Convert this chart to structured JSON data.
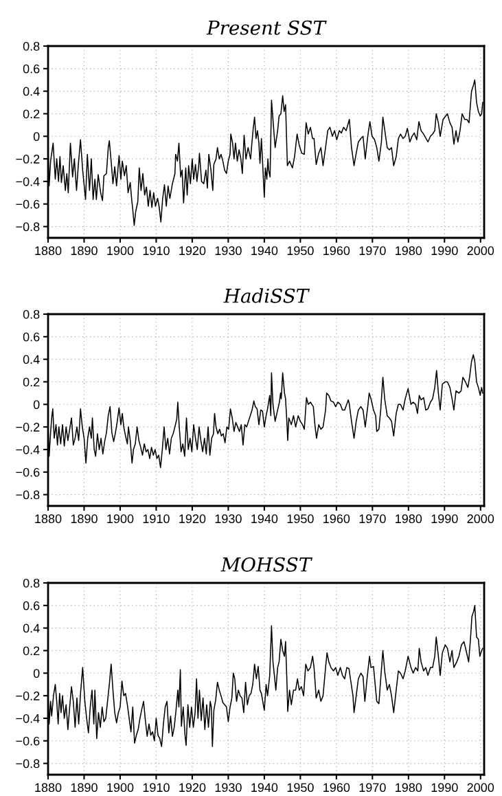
{
  "chart_data": [
    {
      "type": "line",
      "title": "Present SST",
      "xlim": [
        1880,
        2001
      ],
      "xticks": [
        1880,
        1890,
        1900,
        1910,
        1920,
        1930,
        1940,
        1950,
        1960,
        1970,
        1980,
        1990,
        2000
      ],
      "ylim": [
        -0.9,
        0.8
      ],
      "yticks": [
        0.8,
        0.6,
        0.4,
        0.2,
        0,
        {
          "value": -0.2,
          "label": "−0.2"
        },
        {
          "value": -0.4,
          "label": "−0.4"
        },
        {
          "value": -0.6,
          "label": "−0.6"
        },
        {
          "value": -0.8,
          "label": "−0.8"
        }
      ],
      "grid": true,
      "line_style": "solid",
      "x": [
        1880.0,
        1880.3,
        1880.7,
        1881.4,
        1882.0,
        1882.4,
        1882.9,
        1883.3,
        1883.7,
        1884.2,
        1884.8,
        1885.2,
        1885.6,
        1886.2,
        1886.8,
        1887.3,
        1887.9,
        1888.4,
        1889.0,
        1889.6,
        1890.4,
        1890.9,
        1891.5,
        1892.0,
        1892.5,
        1893.0,
        1893.4,
        1893.9,
        1894.6,
        1895.1,
        1895.5,
        1896.2,
        1896.7,
        1897.0,
        1897.5,
        1898.0,
        1898.5,
        1899.0,
        1899.7,
        1900.2,
        1900.6,
        1901.2,
        1901.7,
        1902.2,
        1902.8,
        1903.2,
        1903.5,
        1903.9,
        1904.3,
        1904.9,
        1905.3,
        1905.8,
        1906.3,
        1906.8,
        1907.3,
        1907.8,
        1908.3,
        1908.8,
        1909.3,
        1909.8,
        1910.4,
        1910.8,
        1911.3,
        1911.8,
        1912.3,
        1912.8,
        1913.3,
        1913.8,
        1914.5,
        1915.2,
        1915.4,
        1915.9,
        1916.3,
        1916.8,
        1917.2,
        1917.6,
        1918.2,
        1918.6,
        1919.0,
        1919.5,
        1920.0,
        1920.4,
        1920.9,
        1921.3,
        1921.8,
        1922.0,
        1922.6,
        1923.2,
        1923.8,
        1924.2,
        1924.6,
        1925.2,
        1925.7,
        1926.0,
        1926.6,
        1927.0,
        1927.5,
        1928.0,
        1928.5,
        1929.0,
        1929.5,
        1930.0,
        1930.5,
        1930.7,
        1931.2,
        1931.6,
        1932.0,
        1932.5,
        1933.0,
        1933.5,
        1933.9,
        1934.4,
        1934.9,
        1935.5,
        1936.2,
        1936.5,
        1936.9,
        1937.3,
        1937.7,
        1938.1,
        1938.5,
        1938.8,
        1939.2,
        1940.0,
        1940.3,
        1940.7,
        1941.0,
        1941.2,
        1941.6,
        1942.0,
        1942.4,
        1943.0,
        1943.7,
        1944.1,
        1944.6,
        1945.1,
        1945.5,
        1945.9,
        1946.4,
        1947.0,
        1947.8,
        1948.4,
        1949.1,
        1949.7,
        1950.4,
        1951.1,
        1951.6,
        1952.2,
        1952.8,
        1953.4,
        1953.8,
        1954.4,
        1955.1,
        1955.7,
        1956.3,
        1957.0,
        1957.6,
        1958.2,
        1958.9,
        1959.5,
        1960.1,
        1960.8,
        1961.4,
        1962.0,
        1962.7,
        1963.6,
        1964.2,
        1964.9,
        1965.5,
        1966.1,
        1966.8,
        1967.4,
        1968.0,
        1968.7,
        1969.3,
        1969.9,
        1970.6,
        1971.2,
        1971.8,
        1972.5,
        1972.9,
        1973.4,
        1974.1,
        1974.7,
        1975.3,
        1975.9,
        1976.6,
        1977.2,
        1977.8,
        1978.5,
        1979.1,
        1979.7,
        1980.4,
        1981.0,
        1981.6,
        1982.3,
        1982.9,
        1983.5,
        1984.2,
        1985.4,
        1986.1,
        1986.7,
        1987.3,
        1987.7,
        1988.3,
        1988.8,
        1989.6,
        1990.8,
        1991.5,
        1992.1,
        1992.6,
        1993.2,
        1993.7,
        1994.3,
        1994.9,
        1995.6,
        1996.2,
        1996.8,
        1997.2,
        1997.5,
        1998.0,
        1998.4,
        1998.9,
        1999.4,
        1999.9,
        2000.3,
        2000.6
      ],
      "series": [
        {
          "color": "#000000",
          "values": [
            -0.1,
            -0.44,
            -0.22,
            -0.06,
            -0.38,
            -0.2,
            -0.4,
            -0.18,
            -0.41,
            -0.26,
            -0.48,
            -0.33,
            -0.5,
            -0.06,
            -0.36,
            -0.2,
            -0.48,
            -0.25,
            -0.03,
            -0.3,
            -0.56,
            -0.16,
            -0.48,
            -0.2,
            -0.56,
            -0.38,
            -0.56,
            -0.34,
            -0.5,
            -0.57,
            -0.35,
            -0.33,
            -0.1,
            -0.04,
            -0.22,
            -0.42,
            -0.27,
            -0.44,
            -0.17,
            -0.38,
            -0.22,
            -0.35,
            -0.26,
            -0.5,
            -0.41,
            -0.56,
            -0.65,
            -0.79,
            -0.67,
            -0.58,
            -0.28,
            -0.48,
            -0.33,
            -0.52,
            -0.45,
            -0.62,
            -0.48,
            -0.63,
            -0.5,
            -0.62,
            -0.55,
            -0.62,
            -0.76,
            -0.55,
            -0.43,
            -0.62,
            -0.44,
            -0.55,
            -0.42,
            -0.33,
            -0.16,
            -0.22,
            -0.06,
            -0.36,
            -0.3,
            -0.59,
            -0.28,
            -0.52,
            -0.26,
            -0.42,
            -0.2,
            -0.38,
            -0.25,
            -0.4,
            -0.26,
            -0.15,
            -0.4,
            -0.42,
            -0.3,
            -0.46,
            -0.16,
            -0.3,
            -0.48,
            -0.25,
            -0.2,
            -0.1,
            -0.2,
            -0.16,
            -0.22,
            -0.3,
            -0.33,
            -0.22,
            -0.16,
            0.02,
            -0.06,
            -0.2,
            -0.06,
            -0.22,
            -0.12,
            -0.2,
            -0.33,
            0.01,
            -0.2,
            -0.1,
            -0.2,
            -0.08,
            0.06,
            0.17,
            -0.02,
            0.05,
            -0.06,
            -0.24,
            -0.02,
            -0.54,
            -0.28,
            -0.38,
            -0.2,
            -0.3,
            -0.36,
            0.32,
            0.15,
            -0.1,
            0.05,
            0.18,
            0.2,
            0.36,
            0.22,
            0.28,
            -0.26,
            -0.22,
            -0.28,
            -0.18,
            0.02,
            -0.08,
            -0.15,
            -0.16,
            0.12,
            0.02,
            0.08,
            -0.02,
            -0.02,
            -0.25,
            -0.15,
            -0.1,
            -0.26,
            -0.1,
            0.05,
            0.08,
            0.0,
            0.05,
            -0.03,
            0.05,
            0.03,
            0.08,
            0.05,
            0.15,
            -0.1,
            -0.26,
            -0.15,
            -0.05,
            -0.02,
            0.0,
            -0.2,
            0.0,
            0.13,
            0.0,
            -0.03,
            -0.1,
            -0.22,
            -0.05,
            0.17,
            0.06,
            -0.1,
            -0.12,
            -0.1,
            -0.26,
            -0.18,
            -0.02,
            0.02,
            -0.02,
            0.0,
            0.07,
            -0.05,
            0.0,
            0.03,
            -0.03,
            0.13,
            0.05,
            0.02,
            -0.05,
            0.0,
            0.02,
            0.05,
            0.2,
            0.12,
            0.0,
            0.15,
            0.2,
            0.12,
            0.08,
            -0.07,
            0.05,
            -0.05,
            0.05,
            0.2,
            0.15,
            0.15,
            0.12,
            0.28,
            0.4,
            0.45,
            0.5,
            0.3,
            0.22,
            0.18,
            0.2,
            0.3
          ]
        }
      ]
    },
    {
      "type": "line",
      "title": "HadiSST",
      "xlim": [
        1880,
        2001
      ],
      "xticks": [
        1880,
        1890,
        1900,
        1910,
        1920,
        1930,
        1940,
        1950,
        1960,
        1970,
        1980,
        1990,
        2000
      ],
      "ylim": [
        -0.9,
        0.8
      ],
      "yticks": [
        0.8,
        0.6,
        0.4,
        0.2,
        0,
        {
          "value": -0.2,
          "label": "−0.2"
        },
        {
          "value": -0.4,
          "label": "−0.4"
        },
        {
          "value": -0.6,
          "label": "−0.6"
        },
        {
          "value": -0.8,
          "label": "−0.8"
        }
      ],
      "grid": true,
      "line_style": "solid",
      "x": [
        1880.0,
        1880.3,
        1880.7,
        1881.0,
        1881.3,
        1881.7,
        1882.2,
        1882.6,
        1883.0,
        1883.5,
        1884.0,
        1884.5,
        1885.0,
        1885.5,
        1886.0,
        1886.5,
        1887.0,
        1887.5,
        1888.0,
        1888.5,
        1889.0,
        1889.5,
        1890.0,
        1890.5,
        1891.0,
        1891.5,
        1892.0,
        1892.3,
        1892.8,
        1893.2,
        1893.7,
        1894.2,
        1894.7,
        1895.2,
        1895.7,
        1896.2,
        1896.7,
        1897.2,
        1897.7,
        1898.2,
        1898.7,
        1899.2,
        1899.7,
        1900.2,
        1900.6,
        1901.0,
        1901.5,
        1902.0,
        1902.3,
        1902.8,
        1903.3,
        1903.7,
        1904.2,
        1904.7,
        1905.2,
        1905.7,
        1906.2,
        1906.7,
        1907.2,
        1907.7,
        1908.2,
        1908.7,
        1909.2,
        1909.7,
        1910.2,
        1910.7,
        1911.2,
        1911.7,
        1912.2,
        1912.7,
        1913.2,
        1913.7,
        1914.2,
        1914.7,
        1915.2,
        1915.7,
        1916.0,
        1916.4,
        1916.9,
        1917.4,
        1917.9,
        1918.4,
        1918.9,
        1919.4,
        1919.9,
        1920.4,
        1920.9,
        1921.4,
        1921.9,
        1922.4,
        1922.9,
        1923.4,
        1923.9,
        1924.4,
        1924.9,
        1925.4,
        1925.9,
        1926.2,
        1926.6,
        1927.1,
        1927.6,
        1928.1,
        1928.6,
        1929.1,
        1929.6,
        1930.1,
        1930.6,
        1931.1,
        1931.6,
        1932.1,
        1932.6,
        1933.1,
        1933.6,
        1934.1,
        1934.6,
        1935.1,
        1935.6,
        1936.1,
        1936.6,
        1937.1,
        1937.5,
        1938.0,
        1938.5,
        1939.0,
        1939.5,
        1940.0,
        1940.5,
        1940.9,
        1941.5,
        1941.8,
        1942.0,
        1942.4,
        1943.0,
        1943.7,
        1944.2,
        1944.5,
        1944.7,
        1945.1,
        1945.6,
        1945.9,
        1946.2,
        1946.5,
        1946.8,
        1947.5,
        1948.1,
        1948.7,
        1949.4,
        1950.0,
        1950.6,
        1951.1,
        1951.7,
        1952.2,
        1952.8,
        1953.6,
        1954.1,
        1954.5,
        1955.1,
        1955.7,
        1956.3,
        1957.0,
        1957.3,
        1957.9,
        1958.5,
        1959.2,
        1959.8,
        1960.4,
        1961.1,
        1961.7,
        1962.3,
        1963.3,
        1963.6,
        1964.2,
        1964.9,
        1965.5,
        1966.1,
        1966.8,
        1967.4,
        1968.0,
        1968.7,
        1969.1,
        1969.6,
        1970.3,
        1970.9,
        1971.2,
        1971.8,
        1972.3,
        1972.9,
        1973.4,
        1974.1,
        1974.7,
        1975.3,
        1975.9,
        1976.6,
        1977.2,
        1977.8,
        1978.5,
        1979.1,
        1979.9,
        1980.7,
        1981.3,
        1982.0,
        1982.5,
        1983.0,
        1983.5,
        1984.2,
        1984.8,
        1985.4,
        1986.1,
        1986.7,
        1987.3,
        1987.8,
        1988.3,
        1988.8,
        1989.4,
        1990.2,
        1990.8,
        1991.5,
        1992.1,
        1992.6,
        1993.2,
        1994.0,
        1994.6,
        1995.1,
        1995.8,
        1996.5,
        1997.0,
        1997.5,
        1998.0,
        1998.4,
        1998.9,
        1999.4,
        1999.9,
        2000.3,
        2000.6
      ],
      "series": [
        {
          "color": "#000000",
          "values": [
            -0.2,
            -0.46,
            -0.25,
            -0.12,
            -0.04,
            -0.3,
            -0.18,
            -0.36,
            -0.2,
            -0.35,
            -0.18,
            -0.37,
            -0.2,
            -0.32,
            -0.22,
            -0.12,
            -0.36,
            -0.3,
            -0.2,
            -0.32,
            -0.04,
            -0.2,
            -0.3,
            -0.52,
            -0.3,
            -0.2,
            -0.3,
            -0.12,
            -0.4,
            -0.46,
            -0.26,
            -0.4,
            -0.3,
            -0.44,
            -0.33,
            -0.25,
            -0.1,
            -0.02,
            -0.25,
            -0.33,
            -0.25,
            -0.15,
            -0.03,
            -0.18,
            -0.08,
            -0.2,
            -0.28,
            -0.35,
            -0.2,
            -0.32,
            -0.52,
            -0.4,
            -0.35,
            -0.2,
            -0.32,
            -0.38,
            -0.45,
            -0.35,
            -0.42,
            -0.4,
            -0.48,
            -0.38,
            -0.45,
            -0.4,
            -0.48,
            -0.45,
            -0.56,
            -0.4,
            -0.2,
            -0.4,
            -0.3,
            -0.44,
            -0.3,
            -0.26,
            -0.2,
            -0.13,
            0.02,
            -0.2,
            -0.42,
            -0.35,
            -0.46,
            -0.12,
            -0.4,
            -0.3,
            -0.42,
            -0.18,
            -0.3,
            -0.4,
            -0.2,
            -0.32,
            -0.42,
            -0.3,
            -0.44,
            -0.2,
            -0.45,
            -0.3,
            -0.26,
            -0.08,
            -0.2,
            -0.26,
            -0.22,
            -0.28,
            -0.26,
            -0.34,
            -0.2,
            -0.22,
            -0.04,
            -0.12,
            -0.24,
            -0.16,
            -0.2,
            -0.24,
            -0.18,
            -0.36,
            -0.18,
            -0.2,
            -0.15,
            -0.1,
            -0.05,
            0.03,
            -0.02,
            -0.04,
            -0.18,
            -0.05,
            -0.06,
            -0.2,
            -0.1,
            -0.04,
            0.08,
            -0.1,
            0.28,
            0.0,
            -0.15,
            -0.05,
            0.02,
            0.1,
            0.05,
            0.28,
            0.1,
            0.05,
            -0.12,
            -0.32,
            -0.12,
            -0.18,
            -0.1,
            -0.2,
            -0.1,
            -0.15,
            -0.18,
            -0.22,
            0.06,
            0.0,
            0.02,
            -0.02,
            -0.2,
            -0.3,
            -0.18,
            -0.22,
            -0.2,
            -0.05,
            0.1,
            0.08,
            0.03,
            0.02,
            -0.02,
            0.02,
            0.0,
            -0.05,
            -0.05,
            0.04,
            0.0,
            -0.15,
            -0.3,
            -0.15,
            -0.05,
            -0.02,
            -0.05,
            -0.2,
            -0.02,
            0.1,
            0.05,
            -0.05,
            -0.1,
            -0.24,
            -0.22,
            -0.05,
            0.24,
            0.05,
            -0.1,
            -0.12,
            -0.15,
            -0.28,
            -0.08,
            0.0,
            0.0,
            -0.05,
            0.05,
            0.14,
            0.0,
            0.02,
            0.0,
            -0.08,
            0.08,
            0.04,
            0.06,
            -0.05,
            -0.04,
            0.02,
            0.05,
            0.15,
            0.3,
            0.1,
            -0.05,
            0.18,
            0.2,
            0.2,
            0.15,
            0.05,
            -0.05,
            0.12,
            0.1,
            0.12,
            0.24,
            0.2,
            0.15,
            0.25,
            0.38,
            0.44,
            0.38,
            0.2,
            0.15,
            0.08,
            0.15,
            0.1
          ]
        }
      ]
    },
    {
      "type": "line",
      "title": "MOHSST",
      "xlim": [
        1880,
        2001
      ],
      "xticks": [
        1880,
        1890,
        1900,
        1910,
        1920,
        1930,
        1940,
        1950,
        1960,
        1970,
        1980,
        1990,
        2000
      ],
      "ylim": [
        -0.9,
        0.8
      ],
      "yticks": [
        0.8,
        0.6,
        0.4,
        0.2,
        0,
        {
          "value": -0.2,
          "label": "−0.2"
        },
        {
          "value": -0.4,
          "label": "−0.4"
        },
        {
          "value": -0.6,
          "label": "−0.6"
        },
        {
          "value": -0.8,
          "label": "−0.8"
        }
      ],
      "grid": true,
      "line_style": "solid",
      "x": [
        1880.0,
        1880.3,
        1880.7,
        1881.0,
        1881.5,
        1882.0,
        1882.4,
        1882.8,
        1883.2,
        1883.6,
        1884.0,
        1884.5,
        1885.0,
        1885.5,
        1886.0,
        1886.5,
        1887.0,
        1887.5,
        1888.0,
        1888.5,
        1889.0,
        1889.6,
        1890.2,
        1890.7,
        1891.2,
        1891.7,
        1892.2,
        1892.7,
        1893.0,
        1893.5,
        1894.0,
        1894.5,
        1895.0,
        1895.5,
        1896.0,
        1896.5,
        1897.0,
        1897.5,
        1898.0,
        1898.5,
        1899.0,
        1899.5,
        1900.0,
        1900.5,
        1901.0,
        1901.5,
        1902.0,
        1902.5,
        1903.0,
        1903.5,
        1904.0,
        1904.5,
        1905.0,
        1905.5,
        1906.0,
        1906.5,
        1907.0,
        1907.5,
        1908.0,
        1908.5,
        1909.0,
        1909.5,
        1910.0,
        1910.5,
        1911.0,
        1911.5,
        1912.0,
        1912.5,
        1913.0,
        1913.5,
        1914.0,
        1914.5,
        1915.0,
        1915.5,
        1916.0,
        1916.3,
        1916.7,
        1917.0,
        1917.5,
        1918.0,
        1918.3,
        1918.8,
        1919.3,
        1919.8,
        1920.3,
        1920.8,
        1921.2,
        1921.6,
        1922.0,
        1922.5,
        1923.0,
        1923.5,
        1924.0,
        1924.5,
        1925.0,
        1925.3,
        1925.6,
        1926.0,
        1926.5,
        1927.0,
        1927.5,
        1928.0,
        1928.5,
        1929.0,
        1929.5,
        1930.0,
        1930.5,
        1931.0,
        1931.4,
        1931.8,
        1932.3,
        1932.8,
        1933.3,
        1933.8,
        1934.3,
        1934.8,
        1935.3,
        1935.8,
        1936.3,
        1936.8,
        1937.3,
        1937.8,
        1938.3,
        1938.8,
        1939.2,
        1940.0,
        1940.5,
        1940.9,
        1941.5,
        1942.0,
        1942.4,
        1942.8,
        1943.2,
        1943.7,
        1944.1,
        1944.6,
        1945.1,
        1945.6,
        1945.9,
        1946.3,
        1946.5,
        1947.0,
        1947.5,
        1948.1,
        1948.7,
        1949.2,
        1949.7,
        1950.3,
        1950.9,
        1951.5,
        1952.1,
        1952.8,
        1953.4,
        1953.8,
        1954.4,
        1955.1,
        1955.7,
        1956.3,
        1957.0,
        1957.4,
        1957.9,
        1958.5,
        1959.2,
        1959.8,
        1960.4,
        1961.1,
        1961.7,
        1962.3,
        1962.9,
        1963.5,
        1963.9,
        1964.6,
        1964.9,
        1965.5,
        1966.1,
        1966.8,
        1967.4,
        1967.9,
        1968.5,
        1969.2,
        1969.6,
        1970.3,
        1970.9,
        1971.2,
        1971.8,
        1972.3,
        1972.9,
        1973.4,
        1974.1,
        1974.7,
        1975.3,
        1975.9,
        1976.6,
        1977.2,
        1977.8,
        1978.5,
        1979.1,
        1979.9,
        1980.7,
        1981.3,
        1982.0,
        1982.6,
        1983.0,
        1983.5,
        1984.2,
        1984.8,
        1985.4,
        1986.1,
        1986.7,
        1987.3,
        1987.7,
        1988.3,
        1988.8,
        1989.4,
        1990.2,
        1990.8,
        1991.5,
        1992.1,
        1992.6,
        1993.4,
        1994.0,
        1994.7,
        1995.4,
        1996.0,
        1996.7,
        1997.2,
        1997.6,
        1998.1,
        1998.4,
        1998.9,
        1999.4,
        1999.8,
        2000.3,
        2000.6
      ],
      "series": [
        {
          "color": "#000000",
          "values": [
            -0.2,
            -0.45,
            -0.25,
            -0.38,
            -0.2,
            -0.1,
            -0.25,
            -0.45,
            -0.18,
            -0.35,
            -0.2,
            -0.4,
            -0.28,
            -0.5,
            -0.3,
            -0.12,
            -0.25,
            -0.48,
            -0.22,
            -0.45,
            -0.18,
            0.05,
            -0.25,
            -0.4,
            -0.53,
            -0.3,
            -0.15,
            -0.45,
            -0.15,
            -0.58,
            -0.35,
            -0.48,
            -0.3,
            -0.43,
            -0.4,
            -0.25,
            -0.1,
            0.08,
            -0.15,
            -0.35,
            -0.44,
            -0.35,
            -0.3,
            -0.07,
            -0.2,
            -0.18,
            -0.28,
            -0.4,
            -0.52,
            -0.3,
            -0.62,
            -0.55,
            -0.5,
            -0.4,
            -0.32,
            -0.25,
            -0.42,
            -0.56,
            -0.45,
            -0.55,
            -0.52,
            -0.6,
            -0.4,
            -0.55,
            -0.58,
            -0.65,
            -0.45,
            -0.3,
            -0.25,
            -0.53,
            -0.38,
            -0.56,
            -0.48,
            -0.33,
            -0.15,
            -0.3,
            0.03,
            -0.47,
            -0.3,
            -0.55,
            -0.64,
            -0.28,
            -0.48,
            -0.3,
            -0.48,
            -0.35,
            -0.05,
            -0.4,
            -0.15,
            -0.42,
            -0.22,
            -0.5,
            -0.28,
            -0.48,
            -0.25,
            -0.3,
            -0.65,
            -0.33,
            -0.24,
            -0.08,
            -0.15,
            -0.2,
            -0.26,
            -0.28,
            -0.3,
            -0.43,
            -0.3,
            -0.22,
            0.0,
            -0.05,
            -0.25,
            -0.15,
            -0.2,
            -0.22,
            -0.35,
            -0.08,
            -0.28,
            -0.2,
            -0.18,
            -0.1,
            0.08,
            -0.05,
            0.06,
            -0.15,
            -0.18,
            -0.33,
            -0.1,
            -0.2,
            -0.02,
            0.42,
            0.1,
            -0.02,
            -0.15,
            0.05,
            0.1,
            0.3,
            0.2,
            0.15,
            0.28,
            -0.1,
            -0.34,
            -0.15,
            -0.28,
            -0.15,
            -0.15,
            -0.05,
            -0.15,
            -0.12,
            -0.2,
            0.08,
            0.02,
            0.05,
            0.15,
            0.05,
            -0.22,
            -0.15,
            -0.25,
            -0.2,
            0.05,
            0.18,
            0.1,
            0.05,
            0.02,
            0.05,
            -0.02,
            0.05,
            -0.02,
            -0.05,
            0.05,
            0.04,
            -0.05,
            -0.2,
            -0.35,
            -0.2,
            -0.05,
            0.0,
            -0.03,
            -0.25,
            -0.05,
            0.15,
            0.05,
            0.06,
            -0.15,
            -0.25,
            -0.27,
            -0.05,
            0.2,
            0.02,
            -0.15,
            -0.1,
            -0.2,
            -0.35,
            -0.15,
            0.02,
            0.0,
            -0.05,
            0.02,
            0.15,
            0.05,
            0.0,
            0.05,
            0.02,
            0.22,
            0.1,
            0.02,
            0.05,
            -0.02,
            0.05,
            0.05,
            0.15,
            0.32,
            0.15,
            -0.02,
            0.18,
            0.25,
            0.22,
            0.1,
            0.2,
            0.05,
            0.1,
            0.15,
            0.25,
            0.28,
            0.2,
            0.1,
            0.3,
            0.5,
            0.55,
            0.6,
            0.32,
            0.3,
            0.15,
            0.2,
            0.22
          ]
        }
      ]
    }
  ]
}
